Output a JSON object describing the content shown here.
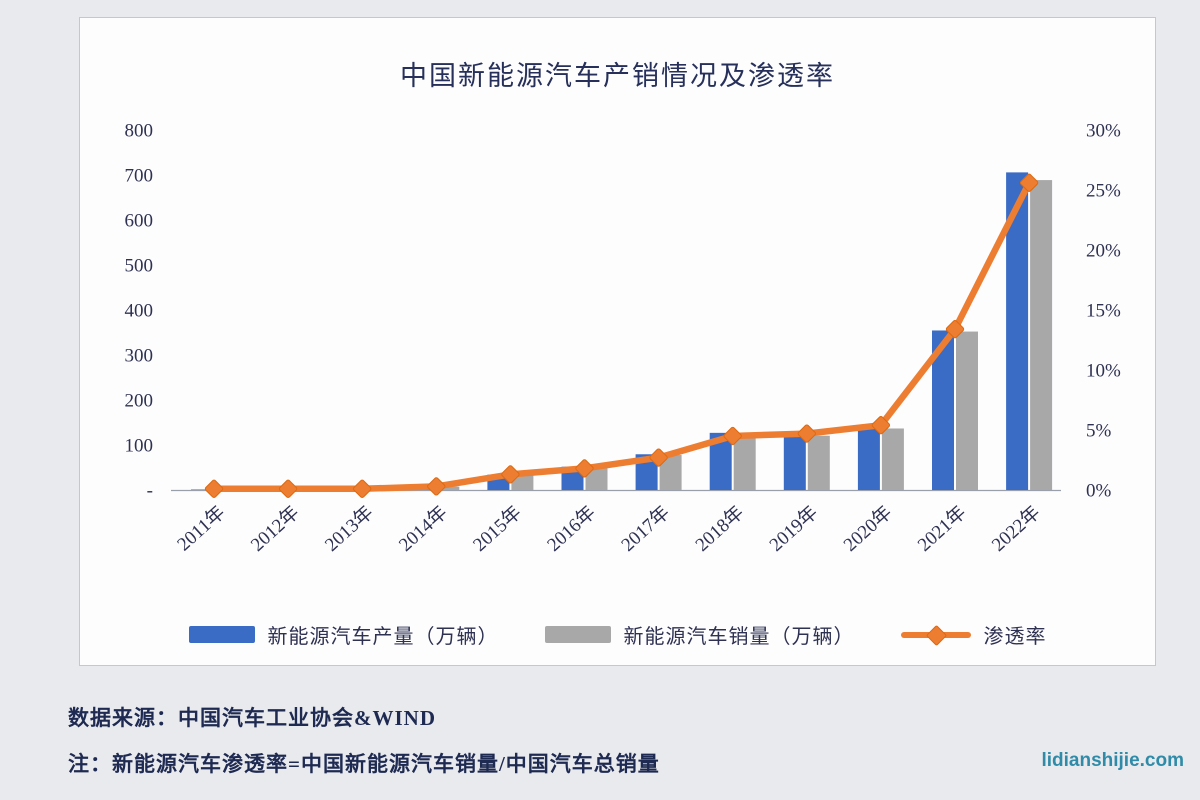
{
  "page": {
    "source_line": "数据来源：中国汽车工业协会&WIND",
    "note_line": "注：新能源汽车渗透率=中国新能源汽车销量/中国汽车总销量",
    "watermark": "lidianshijie.com"
  },
  "colors": {
    "production_bar": "#3a6bc5",
    "sales_bar": "#a8a8a8",
    "penetration_line": "#ed7d31",
    "axis_line": "#9aa0ab",
    "text_navy": "#2e3152"
  },
  "chart_data": {
    "type": "bar",
    "subtype": "combo-bar-line-dual-axis",
    "title": "中国新能源汽车产销情况及渗透率",
    "categories": [
      "2011年",
      "2012年",
      "2013年",
      "2014年",
      "2015年",
      "2016年",
      "2017年",
      "2018年",
      "2019年",
      "2020年",
      "2021年",
      "2022年"
    ],
    "series": [
      {
        "name": "新能源汽车产量（万辆）",
        "type": "bar",
        "axis": "left",
        "color": "#3a6bc5",
        "values": [
          0.8,
          1.3,
          1.8,
          7.8,
          34.0,
          51.7,
          79.4,
          127.0,
          124.2,
          136.6,
          354.5,
          705.8
        ]
      },
      {
        "name": "新能源汽车销量（万辆）",
        "type": "bar",
        "axis": "left",
        "color": "#a8a8a8",
        "values": [
          0.8,
          1.3,
          1.8,
          7.5,
          33.1,
          50.7,
          77.7,
          125.6,
          120.6,
          136.7,
          352.1,
          688.7
        ]
      },
      {
        "name": "渗透率",
        "type": "line",
        "axis": "right",
        "color": "#ed7d31",
        "values": [
          0.1,
          0.1,
          0.1,
          0.3,
          1.3,
          1.8,
          2.7,
          4.5,
          4.7,
          5.4,
          13.4,
          25.6
        ]
      }
    ],
    "left_axis": {
      "min": 0,
      "max": 800,
      "tick_labels": [
        "800",
        "700",
        "600",
        "500",
        "400",
        "300",
        "200",
        "100",
        "-"
      ]
    },
    "right_axis": {
      "min": 0,
      "max": 30,
      "tick_labels": [
        "30%",
        "25%",
        "20%",
        "15%",
        "10%",
        "5%",
        "0%"
      ]
    },
    "grid": false,
    "legend_position": "bottom"
  }
}
